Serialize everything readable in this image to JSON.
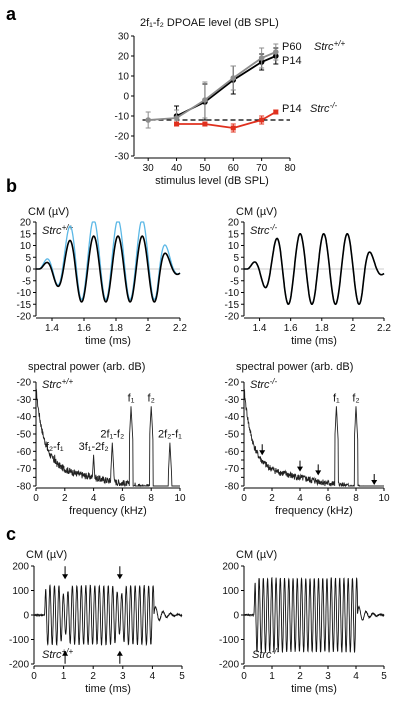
{
  "panels": {
    "a": "a",
    "b": "b",
    "c": "c"
  },
  "chart_data": [
    {
      "id": "a",
      "type": "line",
      "title": "2f₁-f₂ DPOAE level (dB SPL)",
      "xlabel": "stimulus level (dB SPL)",
      "xlim": [
        25,
        80
      ],
      "ylim": [
        -30,
        30
      ],
      "xticks": [
        30,
        40,
        50,
        60,
        70,
        80
      ],
      "yticks": [
        -30,
        -20,
        -10,
        0,
        10,
        20,
        30
      ],
      "noise_floor_dB": -12,
      "series": [
        {
          "name": "P60",
          "genotype": "Strc+/+",
          "color": "#000000",
          "x": [
            40,
            50,
            60,
            70,
            75
          ],
          "y": [
            -10,
            -3,
            8,
            17,
            20
          ],
          "err": [
            5,
            9,
            7,
            4,
            4
          ]
        },
        {
          "name": "P14",
          "color": "#8c8c8c",
          "x": [
            30,
            40,
            50,
            60,
            70,
            75
          ],
          "y": [
            -12,
            -11,
            -2,
            9,
            19,
            22
          ],
          "err": [
            4,
            4,
            9,
            6,
            5,
            4
          ]
        },
        {
          "name": "P14",
          "genotype": "Strc-/-",
          "color": "#e0301e",
          "x": [
            40,
            50,
            60,
            70,
            75
          ],
          "y": [
            -14,
            -14,
            -16,
            -12,
            -8
          ],
          "err": [
            1,
            1,
            2,
            2,
            1
          ]
        }
      ]
    },
    {
      "id": "b-cm-wt",
      "type": "line",
      "ylabel": "CM (µV)",
      "genotype": "Strc+/+",
      "xlabel": "time (ms)",
      "xlim": [
        1.3,
        2.2
      ],
      "ylim": [
        -20,
        20
      ],
      "xticks": [
        1.4,
        1.6,
        1.8,
        2.0,
        2.2
      ],
      "yticks": [
        -20,
        -15,
        -10,
        -5,
        0,
        5,
        10,
        15,
        20
      ],
      "colors": {
        "response": "#000000",
        "fitted": "#5bb8e6"
      },
      "wave": {
        "freq_khz": 6.6,
        "onset_ms": 1.32,
        "rise_ms": 0.22,
        "decay_start_ms": 2.06,
        "decay_ms": 0.07,
        "amp_uV": 14,
        "fit_amp_uV": 17,
        "fit_offset_uV": 4
      }
    },
    {
      "id": "b-cm-ko",
      "type": "line",
      "ylabel": "CM (µV)",
      "genotype": "Strc-/-",
      "xlabel": "time (ms)",
      "xlim": [
        1.3,
        2.2
      ],
      "ylim": [
        -20,
        20
      ],
      "xticks": [
        1.4,
        1.6,
        1.8,
        2.0,
        2.2
      ],
      "yticks": [
        -20,
        -15,
        -10,
        -5,
        0,
        5,
        10,
        15,
        20
      ],
      "colors": {
        "response": "#000000",
        "fitted": "#5bb8e6"
      },
      "wave": {
        "freq_khz": 6.6,
        "onset_ms": 1.32,
        "rise_ms": 0.22,
        "decay_start_ms": 2.06,
        "decay_ms": 0.07,
        "amp_uV": 15,
        "fit_amp_uV": 15,
        "fit_offset_uV": 0
      }
    },
    {
      "id": "b-spec-wt",
      "type": "line",
      "ylabel": "spectral power (arb. dB)",
      "genotype": "Strc+/+",
      "xlabel": "frequency (kHz)",
      "xlim": [
        0,
        10
      ],
      "ylim": [
        -80,
        -20
      ],
      "xticks": [
        0,
        2,
        4,
        6,
        8,
        10
      ],
      "yticks": [
        -80,
        -75,
        -70,
        -65,
        -60,
        -55,
        -50,
        -45,
        -40,
        -35,
        -30,
        -25,
        -20
      ],
      "peaks": [
        {
          "label": "f₂-f₁",
          "f": 1.3,
          "dB": -62
        },
        {
          "label": "3f₁-2f₂",
          "f": 4.0,
          "dB": -62
        },
        {
          "label": "2f₁-f₂",
          "f": 5.3,
          "dB": -55
        },
        {
          "label": "f₁",
          "f": 6.6,
          "dB": -34
        },
        {
          "label": "f₂",
          "f": 8.0,
          "dB": -34
        },
        {
          "label": "2f₂-f₁",
          "f": 9.3,
          "dB": -55
        }
      ]
    },
    {
      "id": "b-spec-ko",
      "type": "line",
      "ylabel": "spectral power (arb. dB)",
      "genotype": "Strc-/-",
      "xlabel": "frequency (kHz)",
      "xlim": [
        0,
        10
      ],
      "ylim": [
        -80,
        -20
      ],
      "xticks": [
        0,
        2,
        4,
        6,
        8,
        10
      ],
      "yticks": [
        -80,
        -75,
        -70,
        -65,
        -60,
        -55,
        -50,
        -45,
        -40,
        -35,
        -30,
        -25,
        -20
      ],
      "peaks": [
        {
          "label": "f₁",
          "f": 6.6,
          "dB": -34
        },
        {
          "label": "f₂",
          "f": 8.0,
          "dB": -34
        }
      ],
      "arrows_at_khz": [
        1.3,
        4.0,
        5.3,
        9.3
      ]
    },
    {
      "id": "c-cm-wt",
      "type": "line",
      "ylabel": "CM (µV)",
      "genotype": "Strc+/+",
      "xlabel": "time (ms)",
      "xlim": [
        0,
        5
      ],
      "ylim": [
        -200,
        200
      ],
      "xticks": [
        0,
        1,
        2,
        3,
        4,
        5
      ],
      "yticks": [
        -200,
        -100,
        0,
        100,
        200
      ],
      "arrows_at_ms": [
        1.05,
        2.9
      ],
      "wave": {
        "freq_khz": 6.6,
        "onset_ms": 0.35,
        "end_ms": 4.05,
        "amp_uV": 120
      }
    },
    {
      "id": "c-cm-ko",
      "type": "line",
      "ylabel": "CM (µV)",
      "genotype": "Strc-/-",
      "xlabel": "time (ms)",
      "xlim": [
        0,
        5
      ],
      "ylim": [
        -200,
        200
      ],
      "xticks": [
        0,
        1,
        2,
        3,
        4,
        5
      ],
      "yticks": [
        -200,
        -100,
        0,
        100,
        200
      ],
      "wave": {
        "freq_khz": 6.6,
        "onset_ms": 0.35,
        "end_ms": 4.05,
        "amp_uV": 150
      }
    }
  ]
}
